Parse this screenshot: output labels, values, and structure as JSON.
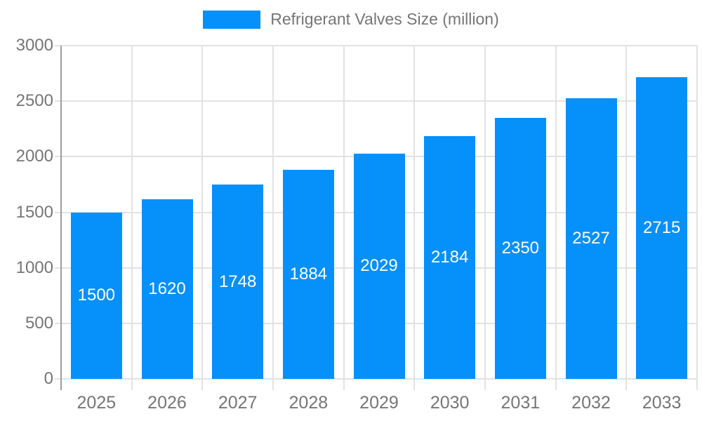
{
  "chart_data": {
    "type": "bar",
    "title": "Refrigerant Valves Size (million)",
    "legend_position": "top",
    "legend": [
      {
        "label": "Refrigerant Valves Size (million)"
      }
    ],
    "categories": [
      "2025",
      "2026",
      "2027",
      "2028",
      "2029",
      "2030",
      "2031",
      "2032",
      "2033"
    ],
    "series": [
      {
        "name": "Refrigerant Valves Size (million)",
        "values": [
          1500,
          1620,
          1748,
          1884,
          2029,
          2184,
          2350,
          2527,
          2715
        ]
      }
    ],
    "value_labels": [
      "1500",
      "1620",
      "1748",
      "1884",
      "2029",
      "2184",
      "2350",
      "2527",
      "2715"
    ],
    "xlabel": "",
    "ylabel": "",
    "ylim": [
      0,
      3000
    ],
    "yticks": [
      0,
      500,
      1000,
      1500,
      2000,
      2500,
      3000
    ],
    "grid": true,
    "colors": {
      "bar": "#0590FA",
      "value_label": "#ffffff",
      "axis_text": "#757575",
      "grid_line": "#e2e2e2",
      "axis_line": "#9e9e9e"
    }
  }
}
